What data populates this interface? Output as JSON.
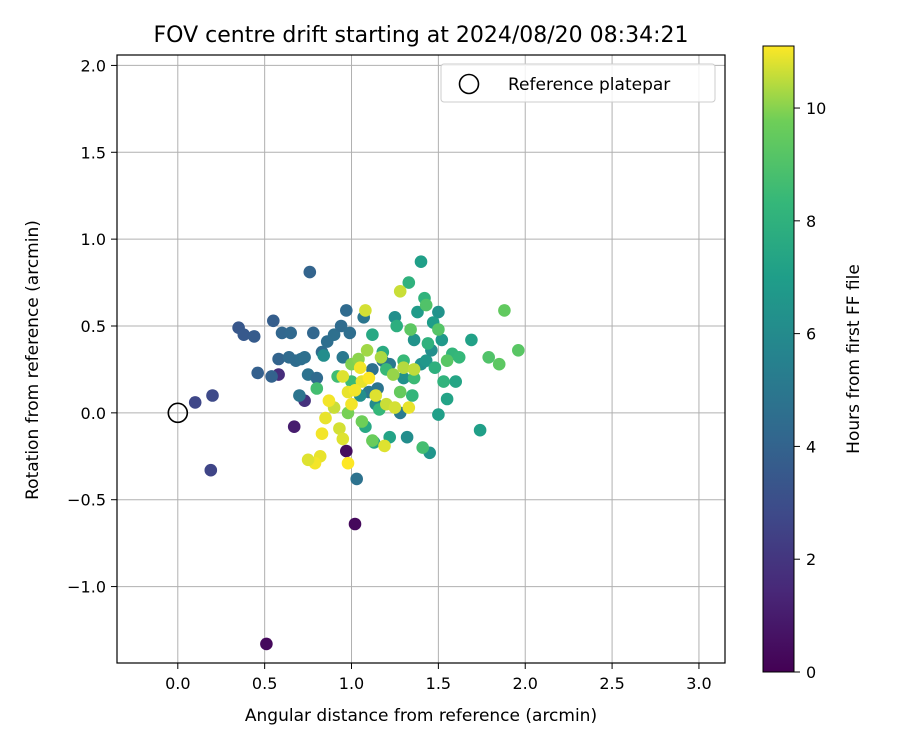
{
  "chart_data": {
    "type": "scatter",
    "title": "FOV centre drift starting at 2024/08/20 08:34:21",
    "xlabel": "Angular distance from reference (arcmin)",
    "ylabel": "Rotation from reference (arcmin)",
    "xlim": [
      -0.35,
      3.15
    ],
    "ylim": [
      -1.44,
      2.06
    ],
    "xticks": [
      0.0,
      0.5,
      1.0,
      1.5,
      2.0,
      2.5,
      3.0
    ],
    "xtick_labels": [
      "0.0",
      "0.5",
      "1.0",
      "1.5",
      "2.0",
      "2.5",
      "3.0"
    ],
    "yticks": [
      -1.0,
      -0.5,
      0.0,
      0.5,
      1.0,
      1.5,
      2.0
    ],
    "ytick_labels": [
      "−1.0",
      "−0.5",
      "0.0",
      "0.5",
      "1.0",
      "1.5",
      "2.0"
    ],
    "grid": true,
    "legend": {
      "position": "top-right",
      "entries": [
        "Reference platepar"
      ]
    },
    "reference_point": {
      "x": 0.0,
      "y": 0.0
    },
    "colorbar": {
      "label": "Hours from first FF file",
      "min": 0,
      "max": 11.1,
      "ticks": [
        0,
        2,
        4,
        6,
        8,
        10
      ],
      "tick_labels": [
        "0",
        "2",
        "4",
        "6",
        "8",
        "10"
      ],
      "colormap": "viridis"
    },
    "series": [
      {
        "points": [
          [
            0.51,
            -1.33,
            0.3
          ],
          [
            1.02,
            -0.64,
            0.3
          ],
          [
            0.97,
            -0.22,
            0.4
          ],
          [
            0.67,
            -0.08,
            1.0
          ],
          [
            0.58,
            0.22,
            1.6
          ],
          [
            0.73,
            0.07,
            1.8
          ],
          [
            0.19,
            -0.33,
            2.6
          ],
          [
            0.1,
            0.06,
            2.7
          ],
          [
            0.2,
            0.1,
            2.8
          ],
          [
            0.35,
            0.49,
            3.4
          ],
          [
            0.38,
            0.45,
            3.5
          ],
          [
            0.44,
            0.44,
            3.6
          ],
          [
            0.55,
            0.53,
            3.7
          ],
          [
            0.46,
            0.23,
            3.8
          ],
          [
            0.54,
            0.21,
            3.9
          ],
          [
            0.58,
            0.31,
            4.0
          ],
          [
            0.6,
            0.46,
            4.1
          ],
          [
            0.65,
            0.46,
            4.2
          ],
          [
            0.64,
            0.32,
            4.3
          ],
          [
            0.68,
            0.3,
            4.4
          ],
          [
            0.71,
            0.31,
            4.5
          ],
          [
            0.73,
            0.32,
            4.6
          ],
          [
            0.75,
            0.22,
            4.7
          ],
          [
            0.7,
            0.1,
            4.8
          ],
          [
            0.76,
            0.81,
            4.0
          ],
          [
            0.78,
            0.46,
            4.1
          ],
          [
            0.8,
            0.2,
            4.3
          ],
          [
            0.83,
            0.35,
            4.4
          ],
          [
            0.86,
            0.41,
            4.5
          ],
          [
            0.9,
            0.45,
            4.6
          ],
          [
            0.94,
            0.5,
            4.4
          ],
          [
            0.97,
            0.59,
            4.3
          ],
          [
            0.99,
            0.46,
            4.5
          ],
          [
            1.03,
            -0.38,
            4.7
          ],
          [
            1.07,
            0.55,
            4.9
          ],
          [
            1.12,
            0.25,
            4.6
          ],
          [
            1.15,
            0.14,
            4.8
          ],
          [
            1.18,
            0.3,
            4.9
          ],
          [
            1.22,
            0.28,
            5.0
          ],
          [
            1.28,
            0.0,
            5.1
          ],
          [
            1.1,
            0.12,
            5.0
          ],
          [
            0.95,
            0.32,
            5.0
          ],
          [
            0.84,
            0.33,
            6.1
          ],
          [
            1.05,
            0.1,
            6.2
          ],
          [
            1.14,
            0.05,
            6.0
          ],
          [
            1.25,
            0.55,
            6.2
          ],
          [
            1.3,
            0.2,
            6.3
          ],
          [
            1.32,
            -0.14,
            6.1
          ],
          [
            1.36,
            0.42,
            6.4
          ],
          [
            1.4,
            0.28,
            6.3
          ],
          [
            1.43,
            0.3,
            6.6
          ],
          [
            1.45,
            -0.23,
            6.5
          ],
          [
            1.5,
            0.58,
            6.4
          ],
          [
            1.52,
            0.42,
            6.7
          ],
          [
            1.46,
            0.36,
            6.2
          ],
          [
            1.38,
            0.58,
            6.8
          ],
          [
            1.4,
            0.87,
            7.0
          ],
          [
            1.47,
            0.52,
            6.9
          ],
          [
            1.5,
            -0.01,
            7.0
          ],
          [
            1.55,
            0.08,
            7.2
          ],
          [
            1.6,
            0.18,
            7.3
          ],
          [
            1.69,
            0.42,
            7.1
          ],
          [
            1.74,
            -0.1,
            7.0
          ],
          [
            1.22,
            -0.14,
            7.2
          ],
          [
            1.13,
            -0.17,
            7.4
          ],
          [
            1.08,
            -0.08,
            7.5
          ],
          [
            1.12,
            0.45,
            7.5
          ],
          [
            1.18,
            0.35,
            7.6
          ],
          [
            1.26,
            0.5,
            7.8
          ],
          [
            1.33,
            0.75,
            8.0
          ],
          [
            1.42,
            0.66,
            8.1
          ],
          [
            1.44,
            0.4,
            8.0
          ],
          [
            1.48,
            0.26,
            7.9
          ],
          [
            1.53,
            0.18,
            8.1
          ],
          [
            1.58,
            0.34,
            8.2
          ],
          [
            1.62,
            0.32,
            8.3
          ],
          [
            1.35,
            0.1,
            8.2
          ],
          [
            1.3,
            0.3,
            8.4
          ],
          [
            1.36,
            0.2,
            8.5
          ],
          [
            1.41,
            -0.2,
            8.7
          ],
          [
            1.2,
            0.25,
            8.4
          ],
          [
            1.16,
            0.02,
            8.3
          ],
          [
            1.0,
            0.18,
            8.5
          ],
          [
            0.92,
            0.21,
            8.6
          ],
          [
            0.8,
            0.14,
            8.7
          ],
          [
            1.43,
            0.62,
            9.0
          ],
          [
            1.5,
            0.48,
            9.1
          ],
          [
            1.55,
            0.3,
            9.2
          ],
          [
            1.79,
            0.32,
            9.0
          ],
          [
            1.85,
            0.28,
            9.3
          ],
          [
            1.88,
            0.59,
            9.4
          ],
          [
            1.96,
            0.36,
            9.2
          ],
          [
            1.34,
            0.48,
            9.3
          ],
          [
            1.28,
            0.12,
            9.5
          ],
          [
            1.12,
            -0.16,
            9.6
          ],
          [
            1.06,
            -0.05,
            9.7
          ],
          [
            0.98,
            0.0,
            9.8
          ],
          [
            1.0,
            0.28,
            9.9
          ],
          [
            1.04,
            0.31,
            10.0
          ],
          [
            1.09,
            0.36,
            10.2
          ],
          [
            1.17,
            0.32,
            10.3
          ],
          [
            1.24,
            0.22,
            10.1
          ],
          [
            1.3,
            0.26,
            10.4
          ],
          [
            1.36,
            0.25,
            10.5
          ],
          [
            1.28,
            0.7,
            10.6
          ],
          [
            1.08,
            0.59,
            10.7
          ],
          [
            1.2,
            0.05,
            10.6
          ],
          [
            1.19,
            -0.19,
            10.8
          ],
          [
            1.33,
            0.03,
            10.9
          ],
          [
            1.25,
            0.03,
            10.7
          ],
          [
            1.14,
            0.1,
            10.8
          ],
          [
            1.06,
            0.18,
            10.9
          ],
          [
            0.95,
            0.21,
            10.8
          ],
          [
            0.98,
            0.12,
            10.9
          ],
          [
            1.02,
            0.13,
            11.0
          ],
          [
            1.05,
            0.26,
            11.0
          ],
          [
            0.9,
            0.03,
            10.6
          ],
          [
            0.93,
            -0.09,
            10.7
          ],
          [
            0.95,
            -0.15,
            10.8
          ],
          [
            0.83,
            -0.12,
            11.0
          ],
          [
            0.85,
            -0.03,
            10.9
          ],
          [
            0.87,
            0.07,
            11.0
          ],
          [
            0.82,
            -0.25,
            10.9
          ],
          [
            0.79,
            -0.29,
            11.0
          ],
          [
            0.75,
            -0.27,
            10.8
          ],
          [
            0.98,
            -0.29,
            11.1
          ],
          [
            1.1,
            0.2,
            11.1
          ],
          [
            1.0,
            0.05,
            11.0
          ]
        ]
      }
    ]
  }
}
